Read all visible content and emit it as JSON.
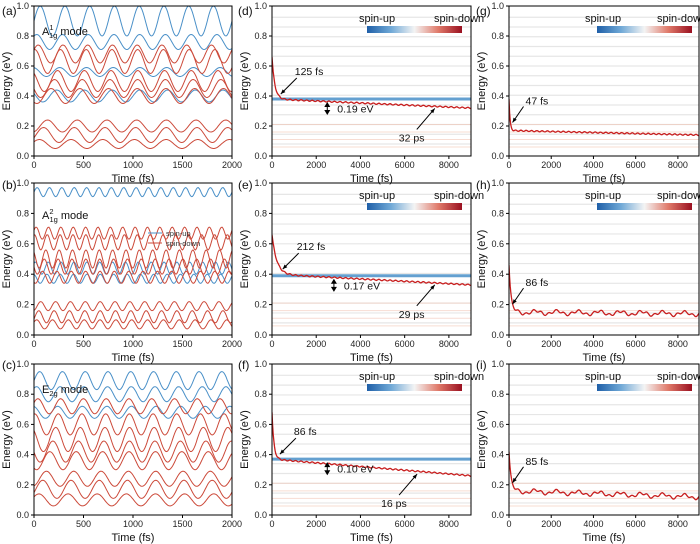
{
  "colors": {
    "up": "#4a90c8",
    "down": "#cc4a3a",
    "upDark": "#1f5fa8",
    "downDark": "#c81e1e",
    "faint": "#e6e6e6",
    "faintRed": "#f2c6b5"
  },
  "chart_data": [
    {
      "id": "a",
      "panel_label": "(a)",
      "type": "line",
      "xlabel": "Time (fs)",
      "ylabel": "Energy (eV)",
      "xlim": [
        0,
        2000
      ],
      "ylim": [
        0,
        1.0
      ],
      "xticks": [
        "0",
        "500",
        "1000",
        "1500",
        "2000"
      ],
      "yticks": [
        "0.0",
        "0.2",
        "0.4",
        "0.6",
        "0.8",
        "1.0"
      ],
      "mode_label": {
        "prefix": "A",
        "sup": "1",
        "sub": "1g",
        "suffix": "mode"
      },
      "osc_period_fs": 250,
      "series": [
        {
          "name": "spin-up",
          "levels": [
            {
              "center": 0.9,
              "amp": 0.1
            },
            {
              "center": 0.76,
              "amp": 0.05
            },
            {
              "center": 0.56,
              "amp": 0.03
            },
            {
              "center": 0.4,
              "amp": 0.04
            }
          ]
        },
        {
          "name": "spin-down",
          "levels": [
            {
              "center": 0.68,
              "amp": 0.06
            },
            {
              "center": 0.63,
              "amp": 0.08
            },
            {
              "center": 0.5,
              "amp": 0.07
            },
            {
              "center": 0.45,
              "amp": 0.06
            },
            {
              "center": 0.4,
              "amp": 0.05
            },
            {
              "center": 0.2,
              "amp": 0.04
            },
            {
              "center": 0.14,
              "amp": 0.05
            },
            {
              "center": 0.08,
              "amp": 0.03
            }
          ]
        }
      ]
    },
    {
      "id": "b",
      "panel_label": "(b)",
      "type": "line",
      "xlabel": "Time (fs)",
      "ylabel": "Energy (eV)",
      "xlim": [
        0,
        2000
      ],
      "ylim": [
        0,
        1.0
      ],
      "xticks": [
        "0",
        "500",
        "1000",
        "1500",
        "2000"
      ],
      "yticks": [
        "0.0",
        "0.2",
        "0.4",
        "0.6",
        "0.8",
        "1.0"
      ],
      "mode_label": {
        "prefix": "A",
        "sup": "2",
        "sub": "1g",
        "suffix": "mode"
      },
      "legend": [
        "spin-up",
        "spin-down"
      ],
      "osc_period_fs": 125,
      "series": [
        {
          "name": "spin-up",
          "levels": [
            {
              "center": 0.94,
              "amp": 0.03
            },
            {
              "center": 0.44,
              "amp": 0.04
            },
            {
              "center": 0.37,
              "amp": 0.03
            }
          ]
        },
        {
          "name": "spin-down",
          "levels": [
            {
              "center": 0.67,
              "amp": 0.04
            },
            {
              "center": 0.61,
              "amp": 0.05
            },
            {
              "center": 0.5,
              "amp": 0.06
            },
            {
              "center": 0.45,
              "amp": 0.05
            },
            {
              "center": 0.38,
              "amp": 0.04
            },
            {
              "center": 0.19,
              "amp": 0.03
            },
            {
              "center": 0.12,
              "amp": 0.04
            },
            {
              "center": 0.07,
              "amp": 0.03
            }
          ]
        }
      ]
    },
    {
      "id": "c",
      "panel_label": "(c)",
      "type": "line",
      "xlabel": "Time (fs)",
      "ylabel": "Energy (eV)",
      "xlim": [
        0,
        2000
      ],
      "ylim": [
        0,
        1.0
      ],
      "xticks": [
        "0",
        "500",
        "1000",
        "1500",
        "2000"
      ],
      "yticks": [
        "0.0",
        "0.2",
        "0.4",
        "0.6",
        "0.8",
        "1.0"
      ],
      "mode_label": {
        "prefix": "E",
        "sup": "",
        "sub": "2g",
        "suffix": "mode"
      },
      "osc_period_fs": 230,
      "series": [
        {
          "name": "spin-up",
          "levels": [
            {
              "center": 0.89,
              "amp": 0.06
            },
            {
              "center": 0.8,
              "amp": 0.05
            },
            {
              "center": 0.68,
              "amp": 0.04
            }
          ]
        },
        {
          "name": "spin-down",
          "levels": [
            {
              "center": 0.72,
              "amp": 0.05
            },
            {
              "center": 0.6,
              "amp": 0.07
            },
            {
              "center": 0.5,
              "amp": 0.08
            },
            {
              "center": 0.42,
              "amp": 0.07
            },
            {
              "center": 0.36,
              "amp": 0.06
            },
            {
              "center": 0.24,
              "amp": 0.05
            },
            {
              "center": 0.17,
              "amp": 0.06
            },
            {
              "center": 0.1,
              "amp": 0.04
            }
          ]
        }
      ]
    },
    {
      "id": "d",
      "panel_label": "(d)",
      "type": "line",
      "xlabel": "Time (fs)",
      "ylabel": "Energy (eV)",
      "xlim": [
        0,
        9000
      ],
      "ylim": [
        0,
        1.0
      ],
      "xticks": [
        "0",
        "2000",
        "4000",
        "6000",
        "8000"
      ],
      "yticks": [
        "0.0",
        "0.2",
        "0.4",
        "0.6",
        "0.8",
        "1.0"
      ],
      "colorbar": {
        "left": "spin-up",
        "right": "spin-down"
      },
      "up_level": 0.38,
      "down": {
        "start": 0.66,
        "plateau": 0.38,
        "tau_fs": 125,
        "end": 0.32
      },
      "annotations": [
        "125 fs",
        "0.19 eV",
        "32 ps"
      ]
    },
    {
      "id": "e",
      "panel_label": "(e)",
      "type": "line",
      "xlabel": "Time (fs)",
      "ylabel": "Energy (eV)",
      "xlim": [
        0,
        9000
      ],
      "ylim": [
        0,
        1.0
      ],
      "xticks": [
        "0",
        "2000",
        "4000",
        "6000",
        "8000"
      ],
      "yticks": [
        "0.0",
        "0.2",
        "0.4",
        "0.6",
        "0.8",
        "1.0"
      ],
      "colorbar": {
        "left": "spin-up",
        "right": "spin-down"
      },
      "up_level": 0.39,
      "down": {
        "start": 0.66,
        "plateau": 0.4,
        "tau_fs": 212,
        "end": 0.33
      },
      "annotations": [
        "212 fs",
        "0.17 eV",
        "29 ps"
      ]
    },
    {
      "id": "f",
      "panel_label": "(f)",
      "type": "line",
      "xlabel": "Time (fs)",
      "ylabel": "Energy (eV)",
      "xlim": [
        0,
        9000
      ],
      "ylim": [
        0,
        1.0
      ],
      "xticks": [
        "0",
        "2000",
        "4000",
        "6000",
        "8000"
      ],
      "yticks": [
        "0.0",
        "0.2",
        "0.4",
        "0.6",
        "0.8",
        "1.0"
      ],
      "colorbar": {
        "left": "spin-up",
        "right": "spin-down"
      },
      "up_level": 0.37,
      "down": {
        "start": 0.68,
        "plateau": 0.37,
        "tau_fs": 86,
        "end": 0.26
      },
      "annotations": [
        "86 fs",
        "0.10 eV",
        "16 ps"
      ]
    },
    {
      "id": "g",
      "panel_label": "(g)",
      "type": "line",
      "xlabel": "Time (fs)",
      "ylabel": "Energy (eV)",
      "xlim": [
        0,
        9000
      ],
      "ylim": [
        0,
        1.0
      ],
      "xticks": [
        "0",
        "2000",
        "4000",
        "6000",
        "8000"
      ],
      "yticks": [
        "0.0",
        "0.2",
        "0.4",
        "0.6",
        "0.8",
        "1.0"
      ],
      "colorbar": {
        "left": "spin-up",
        "right": "spin-down"
      },
      "down": {
        "start": 0.38,
        "plateau": 0.17,
        "tau_fs": 47,
        "end": 0.14
      },
      "annotations": [
        "47 fs"
      ]
    },
    {
      "id": "h",
      "panel_label": "(h)",
      "type": "line",
      "xlabel": "Time (fs)",
      "ylabel": "Energy (eV)",
      "xlim": [
        0,
        9000
      ],
      "ylim": [
        0,
        1.0
      ],
      "xticks": [
        "0",
        "2000",
        "4000",
        "6000",
        "8000"
      ],
      "yticks": [
        "0.0",
        "0.2",
        "0.4",
        "0.6",
        "0.8",
        "1.0"
      ],
      "colorbar": {
        "left": "spin-up",
        "right": "spin-down"
      },
      "down": {
        "start": 0.46,
        "plateau": 0.15,
        "tau_fs": 86,
        "end": 0.14
      },
      "annotations": [
        "86 fs"
      ]
    },
    {
      "id": "i",
      "panel_label": "(i)",
      "type": "line",
      "xlabel": "Time (fs)",
      "ylabel": "Energy (eV)",
      "xlim": [
        0,
        9000
      ],
      "ylim": [
        0,
        1.0
      ],
      "xticks": [
        "0",
        "2000",
        "4000",
        "6000",
        "8000"
      ],
      "yticks": [
        "0.0",
        "0.2",
        "0.4",
        "0.6",
        "0.8",
        "1.0"
      ],
      "colorbar": {
        "left": "spin-up",
        "right": "spin-down"
      },
      "down": {
        "start": 0.42,
        "plateau": 0.16,
        "tau_fs": 85,
        "end": 0.12
      },
      "annotations": [
        "85 fs"
      ]
    }
  ]
}
